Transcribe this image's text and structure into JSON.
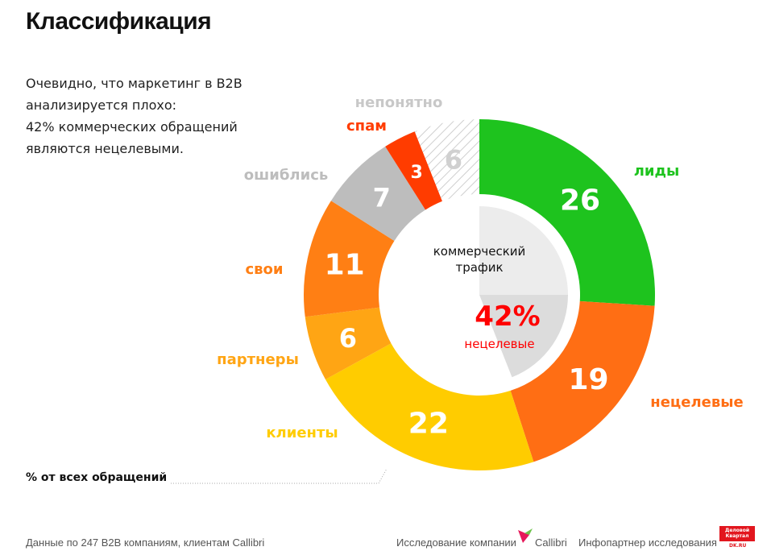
{
  "title": "Классификация",
  "intro": [
    "Очевидно, что маркетинг в B2B",
    "анализируется плохо:",
    "42% коммерческих обращений",
    "являются нецелевыми."
  ],
  "chart_data": {
    "type": "pie",
    "variant": "donut",
    "unit": "% от всех обращений",
    "slices": [
      {
        "name": "лиды",
        "value": 26,
        "color": "#1ec31e"
      },
      {
        "name": "нецелевые",
        "value": 19,
        "color": "#ff6e14"
      },
      {
        "name": "клиенты",
        "value": 22,
        "color": "#ffcc00"
      },
      {
        "name": "партнеры",
        "value": 6,
        "color": "#ffa514"
      },
      {
        "name": "свои",
        "value": 11,
        "color": "#ff7f14"
      },
      {
        "name": "ошиблись",
        "value": 7,
        "color": "#bdbdbd"
      },
      {
        "name": "спам",
        "value": 3,
        "color": "#ff3c00"
      },
      {
        "name": "непонятно",
        "value": 6,
        "color": "hatched-gray"
      }
    ],
    "inner": {
      "label": "коммерческий трафик",
      "highlight_value": "42%",
      "highlight_label": "нецелевые",
      "highlight_color": "#ff0000"
    }
  },
  "footnote": "% от всех обращений",
  "footer": {
    "source": "Данные по 247 B2B компаниям, клиентам Callibri",
    "study": "Исследование компании",
    "callibri": "Callibri",
    "partner": "Инфопартнер исследования",
    "dk_logo": "Деловой Квартал",
    "dk_url": "DK.RU"
  }
}
